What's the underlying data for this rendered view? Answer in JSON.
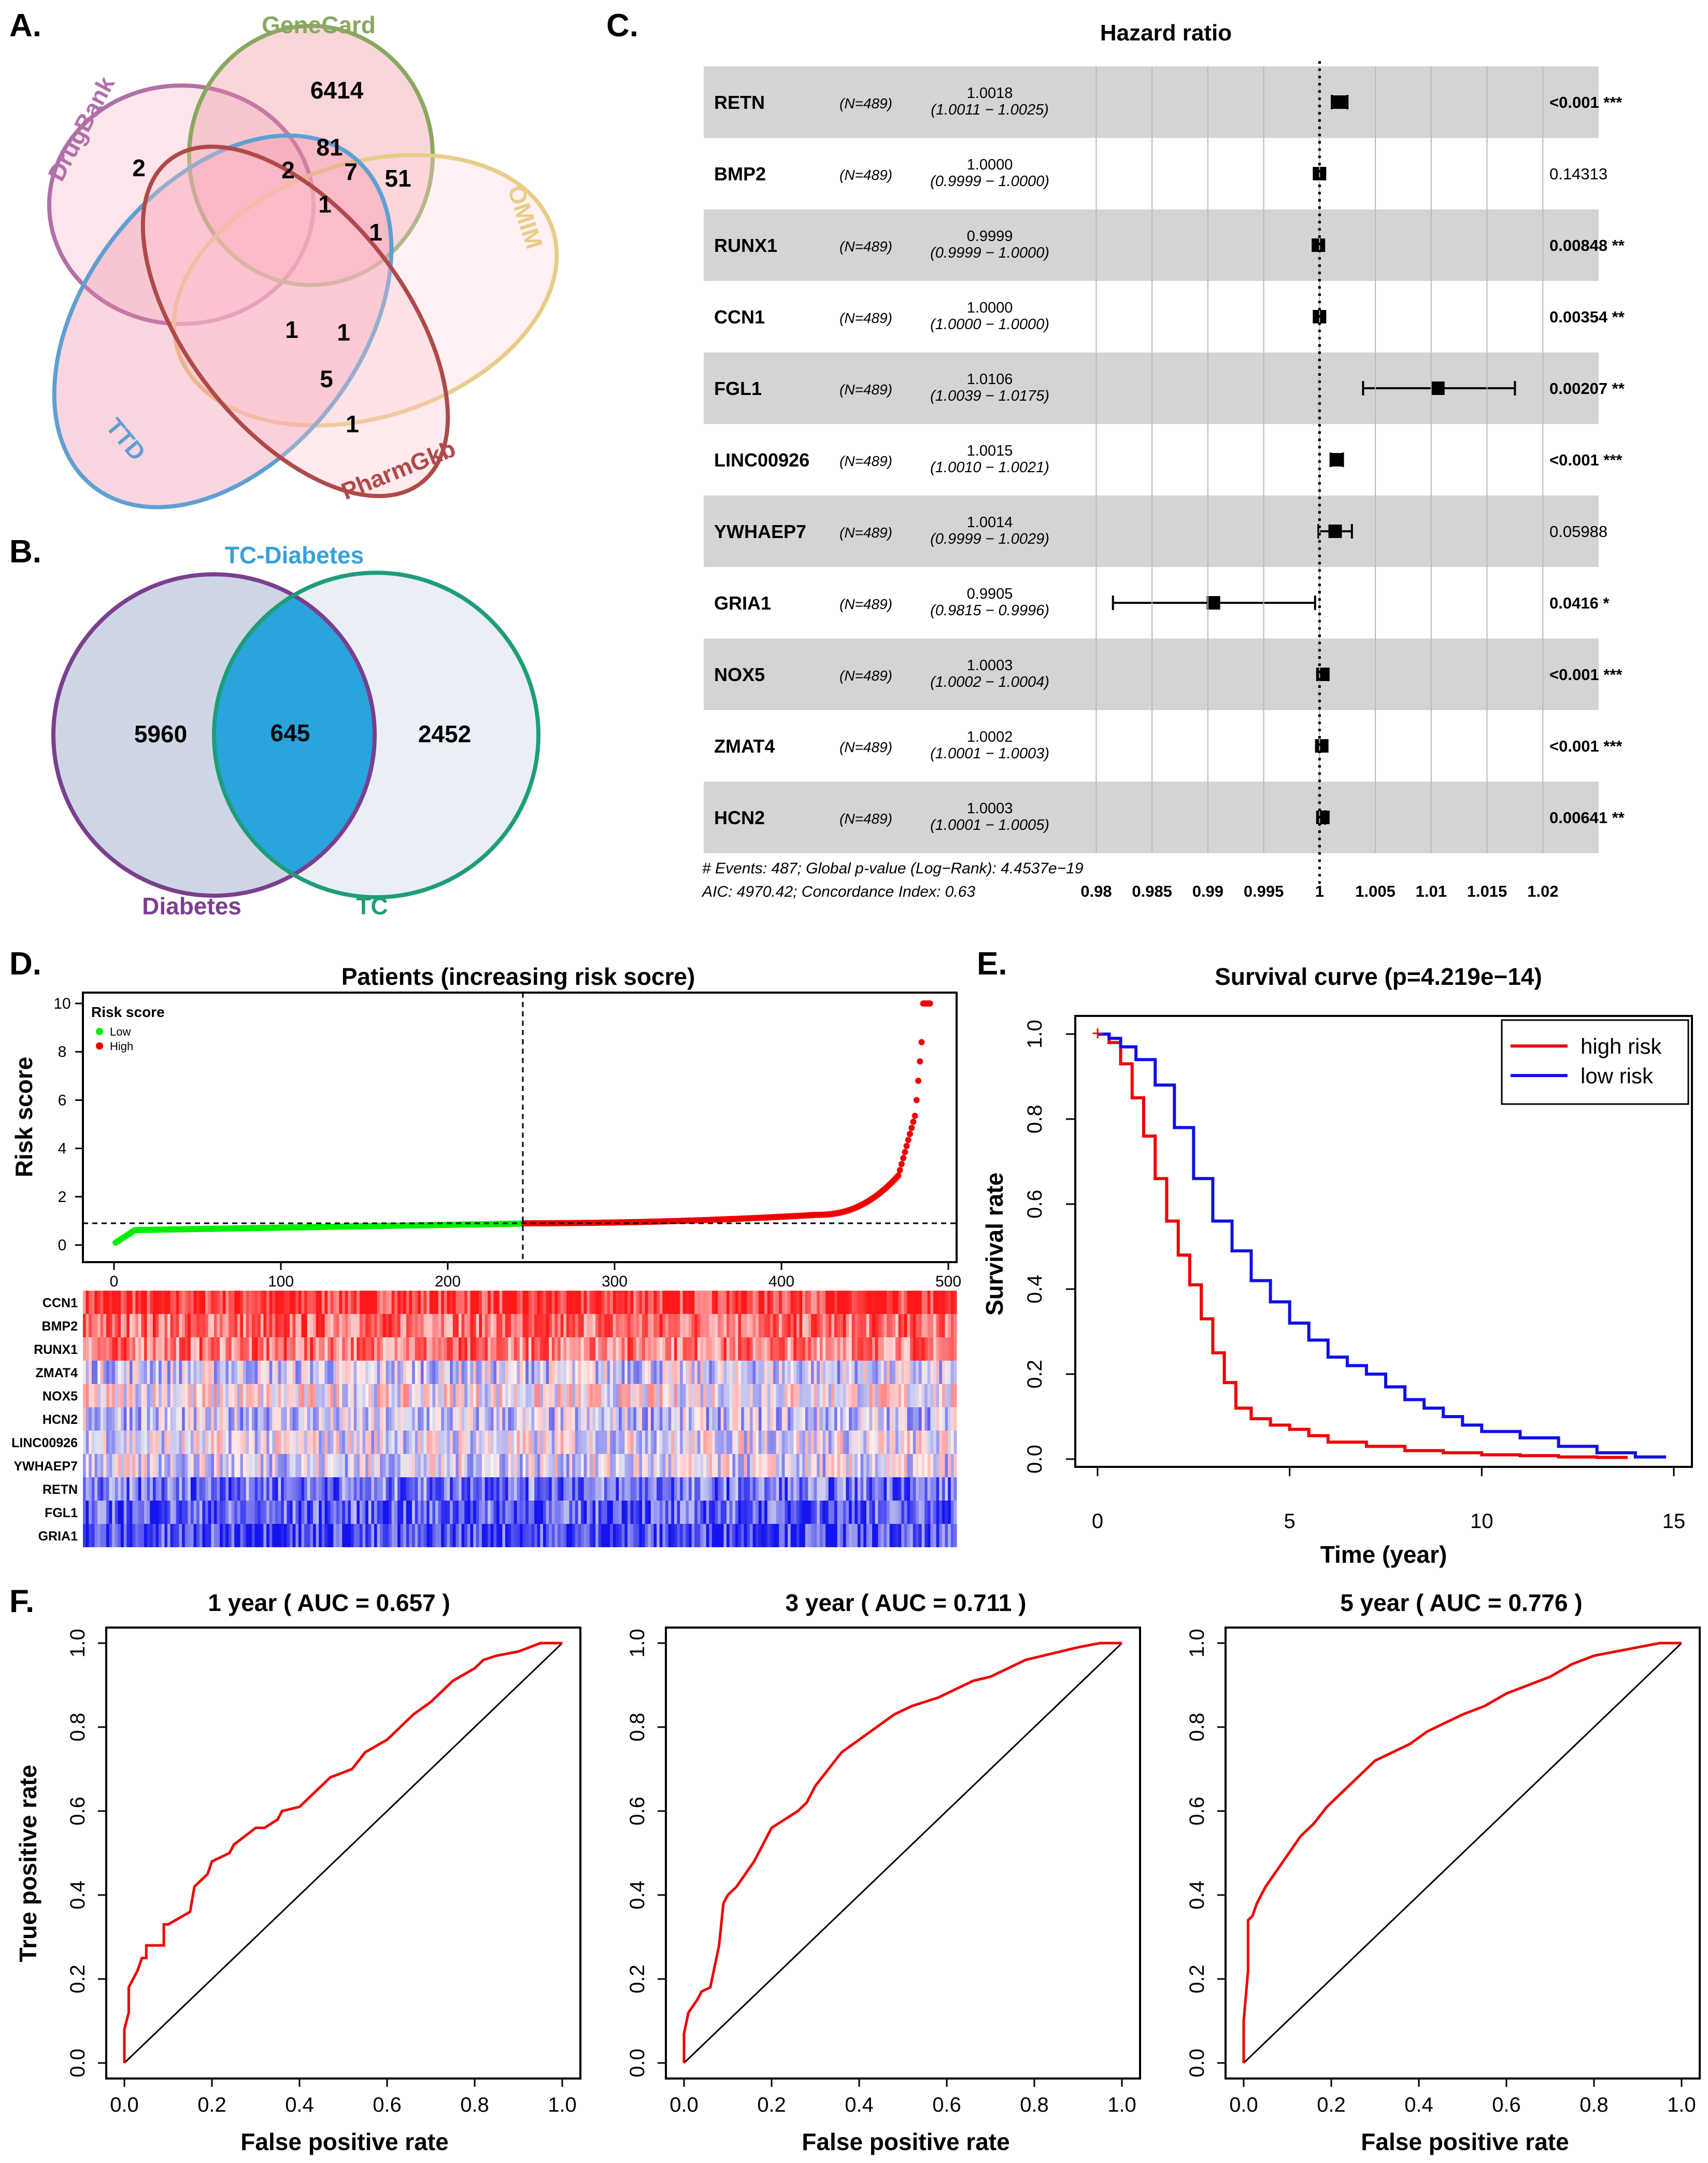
{
  "panels": {
    "a": "A.",
    "b": "B.",
    "c": "C.",
    "d": "D.",
    "e": "E.",
    "f": "F."
  },
  "venn5": {
    "sets": [
      {
        "name": "GeneCard",
        "color": "#8aa860"
      },
      {
        "name": "DrugBank",
        "color": "#b070a8"
      },
      {
        "name": "OMIM",
        "color": "#e8cd88"
      },
      {
        "name": "TTD",
        "color": "#5ea0d2"
      },
      {
        "name": "PharmGkb",
        "color": "#b04a4a"
      }
    ],
    "counts": [
      "6414",
      "2",
      "81",
      "2",
      "7",
      "51",
      "1",
      "1",
      "1",
      "1",
      "5",
      "1"
    ]
  },
  "venn2": {
    "title": "TC-Diabetes",
    "left": {
      "name": "Diabetes",
      "count": "5960",
      "color": "#7b3f8f"
    },
    "overlap": "645",
    "right": {
      "name": "TC",
      "count": "2452",
      "color": "#1e9e78"
    }
  },
  "forest": {
    "title": "Hazard ratio",
    "rows": [
      {
        "gene": "RETN",
        "n": "(N=489)",
        "hr": "1.0018",
        "ci": "(1.0011 − 1.0025)",
        "p": "<0.001",
        "stars": "***",
        "bold": true,
        "est": 1.0018,
        "lo": 1.0011,
        "hi": 1.0025
      },
      {
        "gene": "BMP2",
        "n": "(N=489)",
        "hr": "1.0000",
        "ci": "(0.9999 − 1.0000)",
        "p": "0.14313",
        "stars": "",
        "bold": false,
        "est": 1.0,
        "lo": 0.9999,
        "hi": 1.0
      },
      {
        "gene": "RUNX1",
        "n": "(N=489)",
        "hr": "0.9999",
        "ci": "(0.9999 − 1.0000)",
        "p": "0.00848",
        "stars": "**",
        "bold": true,
        "est": 0.9999,
        "lo": 0.9999,
        "hi": 1.0
      },
      {
        "gene": "CCN1",
        "n": "(N=489)",
        "hr": "1.0000",
        "ci": "(1.0000 − 1.0000)",
        "p": "0.00354",
        "stars": "**",
        "bold": true,
        "est": 1.0,
        "lo": 1.0,
        "hi": 1.0
      },
      {
        "gene": "FGL1",
        "n": "(N=489)",
        "hr": "1.0106",
        "ci": "(1.0039 − 1.0175)",
        "p": "0.00207",
        "stars": "**",
        "bold": true,
        "est": 1.0106,
        "lo": 1.0039,
        "hi": 1.0175
      },
      {
        "gene": "LINC00926",
        "n": "(N=489)",
        "hr": "1.0015",
        "ci": "(1.0010 − 1.0021)",
        "p": "<0.001",
        "stars": "***",
        "bold": true,
        "est": 1.0015,
        "lo": 1.001,
        "hi": 1.0021
      },
      {
        "gene": "YWHAEP7",
        "n": "(N=489)",
        "hr": "1.0014",
        "ci": "(0.9999 − 1.0029)",
        "p": "0.05988",
        "stars": "",
        "bold": false,
        "est": 1.0014,
        "lo": 0.9999,
        "hi": 1.0029
      },
      {
        "gene": "GRIA1",
        "n": "(N=489)",
        "hr": "0.9905",
        "ci": "(0.9815 − 0.9996)",
        "p": "0.0416",
        "stars": "*",
        "bold": true,
        "est": 0.9905,
        "lo": 0.9815,
        "hi": 0.9996
      },
      {
        "gene": "NOX5",
        "n": "(N=489)",
        "hr": "1.0003",
        "ci": "(1.0002 − 1.0004)",
        "p": "<0.001",
        "stars": "***",
        "bold": true,
        "est": 1.0003,
        "lo": 1.0002,
        "hi": 1.0004
      },
      {
        "gene": "ZMAT4",
        "n": "(N=489)",
        "hr": "1.0002",
        "ci": "(1.0001 − 1.0003)",
        "p": "<0.001",
        "stars": "***",
        "bold": true,
        "est": 1.0002,
        "lo": 1.0001,
        "hi": 1.0003
      },
      {
        "gene": "HCN2",
        "n": "(N=489)",
        "hr": "1.0003",
        "ci": "(1.0001 − 1.0005)",
        "p": "0.00641",
        "stars": "**",
        "bold": true,
        "est": 1.0003,
        "lo": 1.0001,
        "hi": 1.0005
      }
    ],
    "footnote1": "# Events: 487; Global p-value (Log−Rank): 4.4537e−19",
    "footnote2": "AIC: 4970.42; Concordance Index: 0.63",
    "xticks": [
      "0.98",
      "0.985",
      "0.99",
      "0.995",
      "1",
      "1.005",
      "1.01",
      "1.015",
      "1.02"
    ],
    "xticks_num": [
      0.98,
      0.985,
      0.99,
      0.995,
      1.0,
      1.005,
      1.01,
      1.015,
      1.02
    ],
    "xlim": [
      0.9765,
      1.025
    ]
  },
  "risk": {
    "title": "Patients (increasing risk socre)",
    "ylabel": "Risk score",
    "legend_title": "Risk score",
    "legend_low": "Low",
    "legend_high": "High",
    "low_color": "#00ee00",
    "high_color": "#ee0000",
    "n_patients": 489,
    "cutoff_index": 245,
    "cutoff_score": 0.9,
    "xticks": [
      "0",
      "100",
      "200",
      "300",
      "400",
      "500"
    ],
    "xticks_num": [
      0,
      100,
      200,
      300,
      400,
      500
    ],
    "yticks": [
      "0",
      "2",
      "4",
      "6",
      "8",
      "10"
    ],
    "yticks_num": [
      0,
      2,
      4,
      6,
      8,
      10
    ],
    "ylim": [
      0,
      10
    ],
    "heatmap_genes": [
      "CCN1",
      "BMP2",
      "RUNX1",
      "ZMAT4",
      "NOX5",
      "HCN2",
      "LINC00926",
      "YWHAEP7",
      "RETN",
      "FGL1",
      "GRIA1"
    ],
    "heatmap_bias": [
      0.85,
      0.6,
      0.55,
      -0.15,
      0.05,
      -0.2,
      -0.05,
      -0.1,
      -0.55,
      -0.65,
      -0.75
    ]
  },
  "chart_data": [
    {
      "type": "line",
      "title": "Survival curve (p=4.219e−14)",
      "xlabel": "Time (year)",
      "ylabel": "Survival rate",
      "xlim": [
        0,
        15
      ],
      "ylim": [
        0,
        1
      ],
      "xticks": [
        "0",
        "5",
        "10",
        "15"
      ],
      "xticks_num": [
        0,
        5,
        10,
        15
      ],
      "yticks": [
        "0.0",
        "0.2",
        "0.4",
        "0.6",
        "0.8",
        "1.0"
      ],
      "yticks_num": [
        0,
        0.2,
        0.4,
        0.6,
        0.8,
        1.0
      ],
      "legend": "top-right",
      "series": [
        {
          "name": "high risk",
          "color": "#ee0000",
          "x": [
            0,
            0.3,
            0.6,
            0.9,
            1.2,
            1.5,
            1.8,
            2.1,
            2.4,
            2.7,
            3.0,
            3.3,
            3.6,
            4.0,
            4.5,
            5.0,
            5.5,
            6.0,
            7.0,
            8.0,
            9.0,
            10.0,
            11.0,
            12.0,
            13.0,
            13.8
          ],
          "y": [
            1.0,
            0.98,
            0.93,
            0.85,
            0.76,
            0.66,
            0.56,
            0.48,
            0.41,
            0.33,
            0.25,
            0.18,
            0.12,
            0.095,
            0.08,
            0.07,
            0.055,
            0.04,
            0.03,
            0.02,
            0.015,
            0.01,
            0.008,
            0.005,
            0.004,
            0.004
          ]
        },
        {
          "name": "low risk",
          "color": "#1010e6",
          "x": [
            0,
            0.3,
            0.6,
            1.0,
            1.5,
            2.0,
            2.5,
            3.0,
            3.5,
            4.0,
            4.5,
            5.0,
            5.5,
            6.0,
            6.5,
            7.0,
            7.5,
            8.0,
            8.5,
            9.0,
            9.5,
            10.0,
            11.0,
            12.0,
            13.0,
            14.0,
            14.8
          ],
          "y": [
            1.0,
            0.99,
            0.97,
            0.94,
            0.88,
            0.78,
            0.66,
            0.56,
            0.49,
            0.42,
            0.37,
            0.32,
            0.28,
            0.24,
            0.22,
            0.2,
            0.17,
            0.14,
            0.12,
            0.1,
            0.08,
            0.065,
            0.05,
            0.03,
            0.015,
            0.005,
            0.005
          ]
        }
      ]
    },
    {
      "type": "line",
      "title": "1 year ( AUC =  0.657 )",
      "xlabel": "False positive rate",
      "ylabel": "True positive rate",
      "xticks": [
        "0.0",
        "0.2",
        "0.4",
        "0.6",
        "0.8",
        "1.0"
      ],
      "yticks": [
        "0.0",
        "0.2",
        "0.4",
        "0.6",
        "0.8",
        "1.0"
      ],
      "ticks_num": [
        0,
        0.2,
        0.4,
        0.6,
        0.8,
        1.0
      ],
      "fpr": [
        0,
        0,
        0.01,
        0.01,
        0.03,
        0.04,
        0.05,
        0.05,
        0.09,
        0.09,
        0.1,
        0.15,
        0.16,
        0.19,
        0.2,
        0.24,
        0.25,
        0.3,
        0.32,
        0.35,
        0.36,
        0.4,
        0.42,
        0.45,
        0.47,
        0.52,
        0.55,
        0.6,
        0.63,
        0.66,
        0.7,
        0.72,
        0.75,
        0.8,
        0.82,
        0.85,
        0.9,
        0.95,
        1.0
      ],
      "tpr": [
        0,
        0.08,
        0.12,
        0.18,
        0.22,
        0.25,
        0.25,
        0.28,
        0.28,
        0.33,
        0.33,
        0.36,
        0.42,
        0.45,
        0.48,
        0.5,
        0.52,
        0.56,
        0.56,
        0.58,
        0.6,
        0.61,
        0.63,
        0.66,
        0.68,
        0.7,
        0.74,
        0.77,
        0.8,
        0.83,
        0.86,
        0.88,
        0.91,
        0.94,
        0.96,
        0.97,
        0.98,
        1.0,
        1.0
      ]
    },
    {
      "type": "line",
      "title": "3 year ( AUC =  0.711 )",
      "xlabel": "False positive rate",
      "ylabel": "True positive rate",
      "xticks": [
        "0.0",
        "0.2",
        "0.4",
        "0.6",
        "0.8",
        "1.0"
      ],
      "yticks": [
        "0.0",
        "0.2",
        "0.4",
        "0.6",
        "0.8",
        "1.0"
      ],
      "ticks_num": [
        0,
        0.2,
        0.4,
        0.6,
        0.8,
        1.0
      ],
      "fpr": [
        0,
        0,
        0.01,
        0.03,
        0.04,
        0.06,
        0.08,
        0.09,
        0.1,
        0.12,
        0.14,
        0.16,
        0.18,
        0.2,
        0.23,
        0.26,
        0.28,
        0.3,
        0.33,
        0.36,
        0.4,
        0.44,
        0.48,
        0.52,
        0.55,
        0.58,
        0.62,
        0.66,
        0.7,
        0.74,
        0.78,
        0.82,
        0.86,
        0.9,
        0.95,
        1.0
      ],
      "tpr": [
        0,
        0.07,
        0.12,
        0.15,
        0.17,
        0.18,
        0.28,
        0.38,
        0.4,
        0.42,
        0.45,
        0.48,
        0.52,
        0.56,
        0.58,
        0.6,
        0.62,
        0.66,
        0.7,
        0.74,
        0.77,
        0.8,
        0.83,
        0.85,
        0.86,
        0.87,
        0.89,
        0.91,
        0.92,
        0.94,
        0.96,
        0.97,
        0.98,
        0.99,
        1.0,
        1.0
      ]
    },
    {
      "type": "line",
      "title": "5 year ( AUC =  0.776 )",
      "xlabel": "False positive rate",
      "ylabel": "True positive rate",
      "xticks": [
        "0.0",
        "0.2",
        "0.4",
        "0.6",
        "0.8",
        "1.0"
      ],
      "yticks": [
        "0.0",
        "0.2",
        "0.4",
        "0.6",
        "0.8",
        "1.0"
      ],
      "ticks_num": [
        0,
        0.2,
        0.4,
        0.6,
        0.8,
        1.0
      ],
      "fpr": [
        0,
        0,
        0.01,
        0.01,
        0.02,
        0.03,
        0.05,
        0.07,
        0.09,
        0.11,
        0.13,
        0.16,
        0.19,
        0.22,
        0.26,
        0.3,
        0.34,
        0.38,
        0.42,
        0.46,
        0.5,
        0.55,
        0.6,
        0.65,
        0.7,
        0.75,
        0.8,
        0.85,
        0.9,
        0.95,
        1.0
      ],
      "tpr": [
        0,
        0.1,
        0.22,
        0.34,
        0.35,
        0.38,
        0.42,
        0.45,
        0.48,
        0.51,
        0.54,
        0.57,
        0.61,
        0.64,
        0.68,
        0.72,
        0.74,
        0.76,
        0.79,
        0.81,
        0.83,
        0.85,
        0.88,
        0.9,
        0.92,
        0.95,
        0.97,
        0.98,
        0.99,
        1.0,
        1.0
      ]
    }
  ]
}
